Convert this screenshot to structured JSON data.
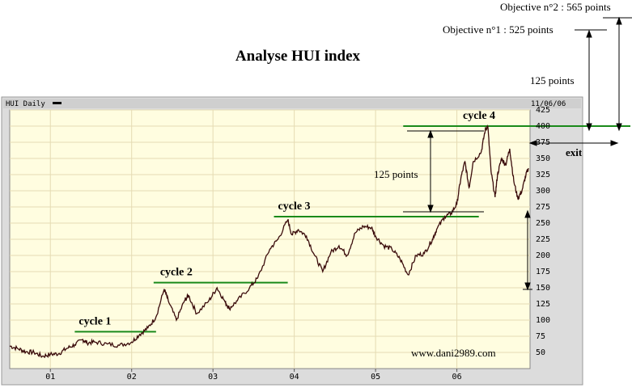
{
  "page": {
    "title": "Analyse HUI index",
    "watermark": "www.dani2989.com"
  },
  "panel": {
    "label": "HUI Daily",
    "date": "11/06/06"
  },
  "annotations": {
    "objective1": "Objective n°1 : 525 points",
    "objective2": "Objective n°2 : 565 points",
    "points_right": "125 points",
    "points_mid": "125 points",
    "exit": "exit"
  },
  "colors": {
    "plot_bg": "#fffde0",
    "frame_bg": "#dcdcdc",
    "grid": "#e5dbb3",
    "price_line": "#3a0b0b",
    "level_line": "#1a8a1a"
  },
  "chart_data": {
    "type": "line",
    "title": "Analyse HUI index",
    "x_tick_labels": [
      "01",
      "02",
      "03",
      "04",
      "05",
      "06"
    ],
    "y_ticks": [
      50,
      75,
      100,
      125,
      150,
      175,
      200,
      225,
      250,
      275,
      300,
      325,
      350,
      375,
      400,
      425
    ],
    "ylim": [
      25,
      425
    ],
    "xlim": [
      2000.5,
      2006.9
    ],
    "grid": true,
    "series": [
      {
        "values": [
          [
            2000.5,
            60
          ],
          [
            2000.6,
            56
          ],
          [
            2000.7,
            51
          ],
          [
            2000.8,
            50
          ],
          [
            2000.9,
            44
          ],
          [
            2001.0,
            47
          ],
          [
            2001.1,
            48
          ],
          [
            2001.2,
            56
          ],
          [
            2001.3,
            62
          ],
          [
            2001.4,
            70
          ],
          [
            2001.45,
            65
          ],
          [
            2001.55,
            66
          ],
          [
            2001.7,
            63
          ],
          [
            2001.85,
            61
          ],
          [
            2002.0,
            66
          ],
          [
            2002.1,
            78
          ],
          [
            2002.2,
            88
          ],
          [
            2002.3,
            105
          ],
          [
            2002.4,
            148
          ],
          [
            2002.45,
            130
          ],
          [
            2002.55,
            100
          ],
          [
            2002.65,
            130
          ],
          [
            2002.7,
            138
          ],
          [
            2002.8,
            110
          ],
          [
            2002.95,
            130
          ],
          [
            2003.05,
            150
          ],
          [
            2003.15,
            128
          ],
          [
            2003.2,
            118
          ],
          [
            2003.3,
            130
          ],
          [
            2003.45,
            150
          ],
          [
            2003.55,
            165
          ],
          [
            2003.7,
            210
          ],
          [
            2003.8,
            225
          ],
          [
            2003.92,
            255
          ],
          [
            2003.97,
            232
          ],
          [
            2004.05,
            240
          ],
          [
            2004.15,
            230
          ],
          [
            2004.25,
            200
          ],
          [
            2004.35,
            175
          ],
          [
            2004.45,
            205
          ],
          [
            2004.55,
            215
          ],
          [
            2004.65,
            200
          ],
          [
            2004.75,
            235
          ],
          [
            2004.85,
            245
          ],
          [
            2004.95,
            243
          ],
          [
            2005.0,
            230
          ],
          [
            2005.1,
            215
          ],
          [
            2005.2,
            210
          ],
          [
            2005.3,
            195
          ],
          [
            2005.4,
            170
          ],
          [
            2005.5,
            200
          ],
          [
            2005.6,
            203
          ],
          [
            2005.7,
            225
          ],
          [
            2005.75,
            240
          ],
          [
            2005.85,
            260
          ],
          [
            2005.93,
            265
          ],
          [
            2006.0,
            280
          ],
          [
            2006.05,
            320
          ],
          [
            2006.1,
            345
          ],
          [
            2006.15,
            305
          ],
          [
            2006.2,
            345
          ],
          [
            2006.3,
            360
          ],
          [
            2006.35,
            395
          ],
          [
            2006.38,
            400
          ],
          [
            2006.42,
            330
          ],
          [
            2006.47,
            290
          ],
          [
            2006.5,
            325
          ],
          [
            2006.55,
            350
          ],
          [
            2006.6,
            340
          ],
          [
            2006.65,
            365
          ],
          [
            2006.7,
            315
          ],
          [
            2006.75,
            288
          ],
          [
            2006.8,
            300
          ],
          [
            2006.85,
            325
          ],
          [
            2006.88,
            335
          ]
        ]
      }
    ],
    "levels": [
      {
        "label": "cycle 1",
        "y": 82,
        "x": [
          2001.3,
          2002.3
        ]
      },
      {
        "label": "cycle 2",
        "y": 158,
        "x": [
          2002.27,
          2003.92
        ]
      },
      {
        "label": "cycle 3",
        "y": 260,
        "x": [
          2003.75,
          2006.27
        ]
      },
      {
        "label": "cycle 4",
        "y": 400,
        "x": [
          2005.34,
          2006.92
        ]
      }
    ]
  }
}
